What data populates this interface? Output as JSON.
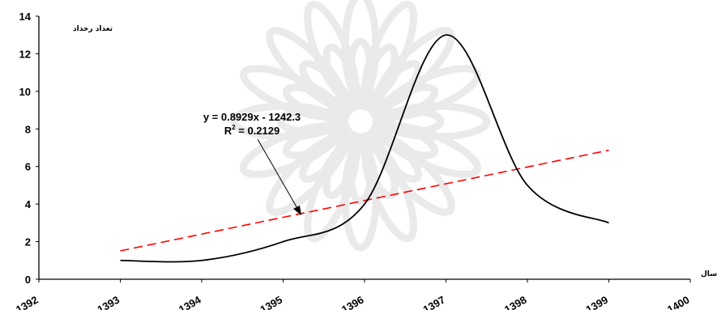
{
  "chart_data": {
    "type": "line",
    "ylabel": "تعداد رخداد",
    "xlabel": "سال",
    "xlim": [
      1392,
      1400
    ],
    "ylim": [
      0,
      14
    ],
    "x_ticks": [
      "1392",
      "1393",
      "1394",
      "1395",
      "1396",
      "1397",
      "1398",
      "1399",
      "1400"
    ],
    "y_ticks": [
      "0",
      "2",
      "4",
      "6",
      "8",
      "10",
      "12",
      "14"
    ],
    "grid": false,
    "series": [
      {
        "x": [
          1393,
          1394,
          1395,
          1396,
          1397,
          1398,
          1399
        ],
        "values": [
          1,
          1,
          2,
          4,
          13,
          5,
          3
        ],
        "color": "#000000",
        "style": "solid"
      }
    ],
    "trendline": {
      "equation": "y = 0.8929x - 1242.3",
      "r_squared_prefix": "R",
      "r_squared_exp": "2",
      "r_squared_value": " = 0.2129",
      "color": "#ff0000",
      "style": "dashed"
    }
  },
  "colors": {
    "background": "#ffffff",
    "axis": "#000000",
    "watermark": "#d9d9d9"
  }
}
